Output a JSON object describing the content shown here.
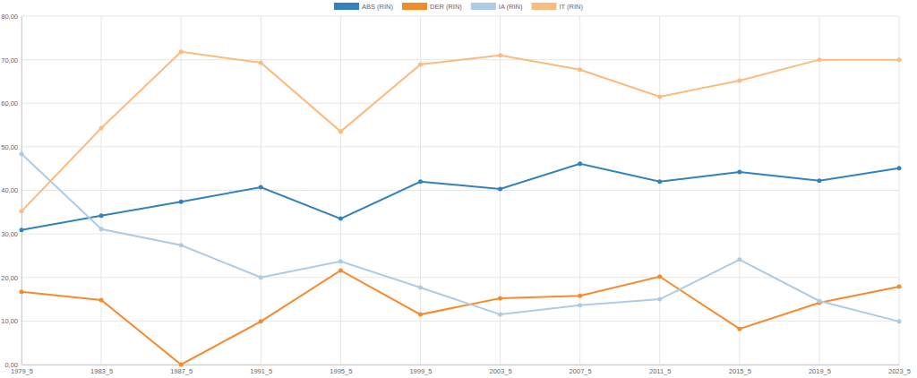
{
  "chart_data": {
    "type": "line",
    "categories": [
      "1979_5",
      "1983_5",
      "1987_5",
      "1991_5",
      "1995_5",
      "1999_5",
      "2003_5",
      "2007_5",
      "2011_5",
      "2015_5",
      "2019_5",
      "2023_5"
    ],
    "series": [
      {
        "name": "ABS (RIN)",
        "color": "#3182bd",
        "marker": "circle",
        "values": [
          30.9,
          34.2,
          37.4,
          40.7,
          33.5,
          42.0,
          40.3,
          46.1,
          42.0,
          44.2,
          42.2,
          45.1
        ]
      },
      {
        "name": "DER (RIN)",
        "color": "#f58b2b",
        "marker": "circle",
        "values": [
          16.7,
          14.8,
          0,
          9.9,
          21.6,
          11.5,
          15.2,
          15.8,
          20.2,
          8.2,
          14.2,
          17.9
        ]
      },
      {
        "name": "IA (RIN)",
        "color": "#aecbe6",
        "marker": "circle",
        "values": [
          48.4,
          31.1,
          27.4,
          20.0,
          23.7,
          17.7,
          11.5,
          13.6,
          15.0,
          24.1,
          14.6,
          9.9
        ]
      },
      {
        "name": "IT (RIN)",
        "color": "#fbbb7e",
        "marker": "circle",
        "values": [
          35.2,
          54.3,
          71.8,
          69.3,
          53.5,
          68.9,
          71.0,
          67.7,
          61.5,
          65.2,
          70.0,
          70.0
        ]
      }
    ],
    "ylim": [
      0,
      80
    ],
    "yticks": [
      {
        "value": 0,
        "label": "0,00"
      },
      {
        "value": 10,
        "label": "10,00"
      },
      {
        "value": 20,
        "label": "20,00"
      },
      {
        "value": 30,
        "label": "30,00"
      },
      {
        "value": 40,
        "label": "40,00"
      },
      {
        "value": 50,
        "label": "50,00"
      },
      {
        "value": 60,
        "label": "60,00"
      },
      {
        "value": 70,
        "label": "70,00"
      },
      {
        "value": 80,
        "label": "80,00"
      }
    ],
    "grid": true,
    "legend": "top"
  }
}
